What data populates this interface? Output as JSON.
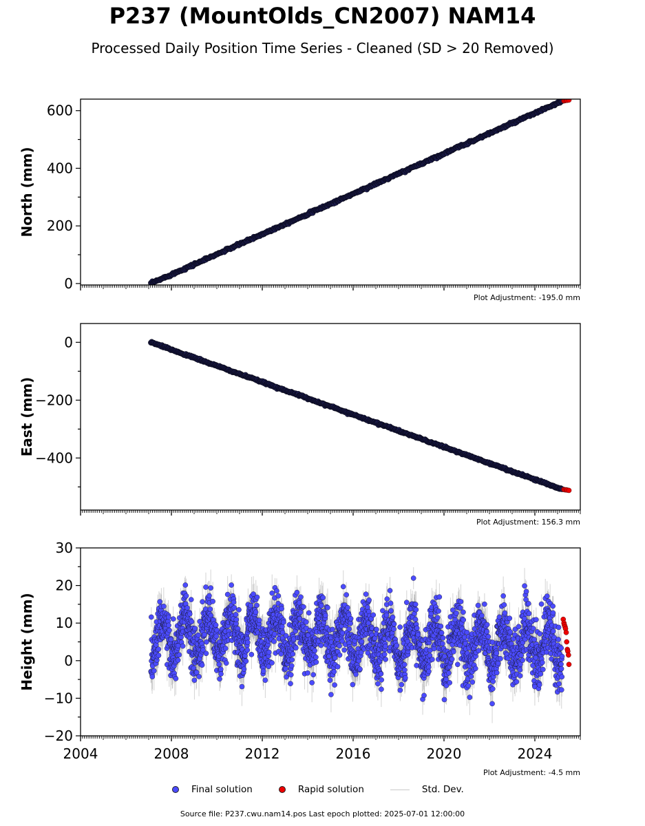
{
  "title": "P237 (MountOlds_CN2007) NAM14",
  "subtitle": "Processed Daily Position Time Series - Cleaned (SD > 20 Removed)",
  "legend": {
    "final": "Final solution",
    "rapid": "Rapid solution",
    "std": "Std. Dev."
  },
  "footer": "Source file: P237.cwu.nam14.pos  Last epoch plotted: 2025-07-01 12:00:00",
  "colors": {
    "final": "#4b4bff",
    "rapid": "#ee0000",
    "std": "#808080",
    "trend_dot": "#1a1a4a"
  },
  "chart_data": [
    {
      "type": "scatter",
      "ylabel": "North (mm)",
      "adjustment": "Plot Adjustment: -195.0 mm",
      "xlim": [
        2004.0,
        2026.0
      ],
      "ylim": [
        -5,
        640
      ],
      "yticks": [
        0,
        200,
        400,
        600
      ],
      "x_tick_labels_visible": false,
      "grid": false,
      "series": [
        {
          "name": "Final solution",
          "x": [
            2007.1,
            2025.2
          ],
          "y": [
            0,
            633
          ],
          "style": "dense-daily"
        },
        {
          "name": "Rapid solution",
          "x": [
            2025.28,
            2025.33,
            2025.38,
            2025.43,
            2025.5
          ],
          "y": [
            634,
            635,
            636,
            636,
            637
          ]
        }
      ]
    },
    {
      "type": "scatter",
      "ylabel": "East (mm)",
      "adjustment": "Plot Adjustment: 156.3 mm",
      "xlim": [
        2004.0,
        2026.0
      ],
      "ylim": [
        -580,
        65
      ],
      "yticks": [
        0,
        -200,
        -400
      ],
      "x_tick_labels_visible": false,
      "grid": false,
      "series": [
        {
          "name": "Final solution",
          "x": [
            2007.1,
            2025.2
          ],
          "y": [
            0,
            -508
          ],
          "style": "dense-daily"
        },
        {
          "name": "Rapid solution",
          "x": [
            2025.28,
            2025.33,
            2025.38,
            2025.43,
            2025.5
          ],
          "y": [
            -509,
            -510,
            -510,
            -511,
            -512
          ]
        }
      ]
    },
    {
      "type": "scatter",
      "ylabel": "Height (mm)",
      "adjustment": "Plot Adjustment: -4.5 mm",
      "xlim": [
        2004.0,
        2026.0
      ],
      "ylim": [
        -20,
        30
      ],
      "yticks": [
        -20,
        -10,
        0,
        10,
        20,
        30
      ],
      "xticks": [
        2004,
        2008,
        2012,
        2016,
        2020,
        2024
      ],
      "grid": false,
      "series": [
        {
          "name": "Final solution",
          "x": [
            2007.1,
            2025.2
          ],
          "y_mean": 5.5,
          "seasonal_amplitude": 5.5,
          "noise_sd": 3.6,
          "style": "dense-daily-noisy"
        },
        {
          "name": "Rapid solution",
          "x": [
            2025.25,
            2025.28,
            2025.3,
            2025.33,
            2025.35,
            2025.38,
            2025.4,
            2025.43,
            2025.45,
            2025.48,
            2025.5
          ],
          "y": [
            11,
            10,
            9.5,
            9,
            8.5,
            7.5,
            5,
            3,
            2.5,
            1.5,
            -1
          ]
        },
        {
          "name": "Std. Dev.",
          "typical_sd": 3.5
        }
      ]
    }
  ]
}
